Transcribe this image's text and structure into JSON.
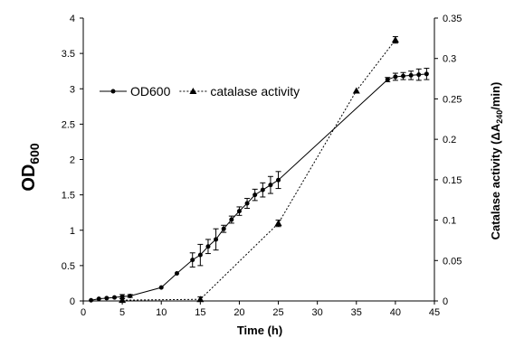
{
  "chart_data": {
    "type": "line",
    "title": "",
    "xlabel": "Time (h)",
    "ylabel_left": {
      "main": "OD",
      "sub": "600"
    },
    "ylabel_right": {
      "prefix": "Catalase activity (ΔA",
      "sub": "240",
      "suffix": "/min)"
    },
    "xlim": [
      0,
      45
    ],
    "ylim_left": [
      0,
      4
    ],
    "ylim_right": [
      0,
      0.35
    ],
    "x_ticks": [
      0,
      5,
      10,
      15,
      20,
      25,
      30,
      35,
      40,
      45
    ],
    "y_left_ticks": [
      0,
      0.5,
      1,
      1.5,
      2,
      2.5,
      3,
      3.5,
      4
    ],
    "y_right_ticks": [
      0,
      0.05,
      0.1,
      0.15,
      0.2,
      0.25,
      0.3,
      0.35
    ],
    "legend_position": "upper-left",
    "grid": false,
    "series": [
      {
        "name": "OD600",
        "axis": "left",
        "line_style": "solid",
        "marker": "circle",
        "points": [
          {
            "x": 1,
            "y": 0.01,
            "err": 0
          },
          {
            "x": 2,
            "y": 0.03,
            "err": 0
          },
          {
            "x": 3,
            "y": 0.04,
            "err": 0
          },
          {
            "x": 4,
            "y": 0.05,
            "err": 0
          },
          {
            "x": 5,
            "y": 0.06,
            "err": 0.03
          },
          {
            "x": 6,
            "y": 0.07,
            "err": 0.02
          },
          {
            "x": 10,
            "y": 0.19,
            "err": 0
          },
          {
            "x": 12,
            "y": 0.39,
            "err": 0
          },
          {
            "x": 14,
            "y": 0.58,
            "err": 0.1
          },
          {
            "x": 15,
            "y": 0.65,
            "err": 0.15
          },
          {
            "x": 16,
            "y": 0.77,
            "err": 0.1
          },
          {
            "x": 17,
            "y": 0.87,
            "err": 0.15
          },
          {
            "x": 18,
            "y": 1.02,
            "err": 0.05
          },
          {
            "x": 19,
            "y": 1.15,
            "err": 0.05
          },
          {
            "x": 20,
            "y": 1.27,
            "err": 0.06
          },
          {
            "x": 21,
            "y": 1.38,
            "err": 0.07
          },
          {
            "x": 22,
            "y": 1.5,
            "err": 0.08
          },
          {
            "x": 23,
            "y": 1.57,
            "err": 0.1
          },
          {
            "x": 24,
            "y": 1.64,
            "err": 0.12
          },
          {
            "x": 25,
            "y": 1.71,
            "err": 0.12
          },
          {
            "x": 39,
            "y": 3.13,
            "err": 0.03
          },
          {
            "x": 40,
            "y": 3.17,
            "err": 0.05
          },
          {
            "x": 41,
            "y": 3.18,
            "err": 0.05
          },
          {
            "x": 42,
            "y": 3.19,
            "err": 0.06
          },
          {
            "x": 43,
            "y": 3.2,
            "err": 0.08
          },
          {
            "x": 44,
            "y": 3.21,
            "err": 0.08
          }
        ]
      },
      {
        "name": "catalase activity",
        "axis": "right",
        "line_style": "dotted",
        "marker": "triangle",
        "points": [
          {
            "x": 5,
            "y": 0.001,
            "err": 0.002
          },
          {
            "x": 15,
            "y": 0.002,
            "err": 0.003
          },
          {
            "x": 25,
            "y": 0.096,
            "err": 0.004
          },
          {
            "x": 35,
            "y": 0.26,
            "err": 0
          },
          {
            "x": 40,
            "y": 0.323,
            "err": 0.004
          }
        ]
      }
    ]
  }
}
